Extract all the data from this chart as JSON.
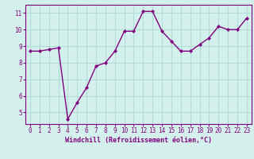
{
  "x": [
    0,
    1,
    2,
    3,
    4,
    5,
    6,
    7,
    8,
    9,
    10,
    11,
    12,
    13,
    14,
    15,
    16,
    17,
    18,
    19,
    20,
    21,
    22,
    23
  ],
  "y": [
    8.7,
    8.7,
    8.8,
    8.9,
    4.6,
    5.6,
    6.5,
    7.8,
    8.0,
    8.7,
    9.9,
    9.9,
    11.1,
    11.1,
    9.9,
    9.3,
    8.7,
    8.7,
    9.1,
    9.5,
    10.2,
    10.0,
    10.0,
    10.7
  ],
  "line_color": "#800080",
  "marker": "D",
  "marker_size": 2.0,
  "xlabel": "Windchill (Refroidissement éolien,°C)",
  "xlabel_fontsize": 6.0,
  "ylabel_ticks": [
    5,
    6,
    7,
    8,
    9,
    10,
    11
  ],
  "xlim": [
    -0.5,
    23.5
  ],
  "ylim": [
    4.3,
    11.5
  ],
  "bg_color": "#d4f0ec",
  "grid_color": "#b0ddd8",
  "tick_color": "#800080",
  "tick_fontsize": 5.5,
  "line_width": 1.0
}
